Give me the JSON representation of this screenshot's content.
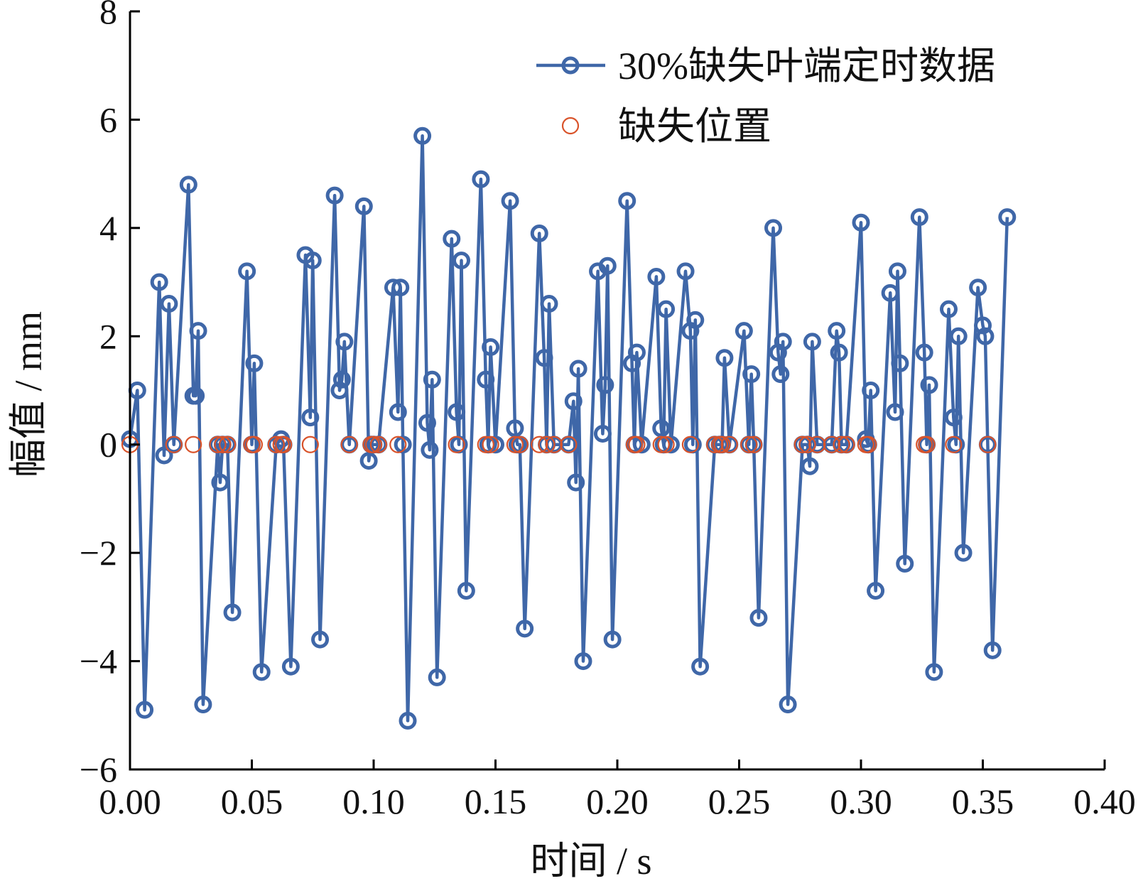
{
  "chart_data": {
    "type": "line",
    "xlabel": "时间 / s",
    "ylabel": "幅值 / mm",
    "xlim": [
      0.0,
      0.4
    ],
    "ylim": [
      -6,
      8
    ],
    "xticks": [
      "0.00",
      "0.05",
      "0.10",
      "0.15",
      "0.20",
      "0.25",
      "0.30",
      "0.35",
      "0.40"
    ],
    "yticks": [
      "−6",
      "−4",
      "−2",
      "0",
      "2",
      "4",
      "6",
      "8"
    ],
    "legend_position": "top-right",
    "grid": false,
    "colors": {
      "series_line": "#3f67a8",
      "missing_marker": "#d9532a"
    },
    "series": [
      {
        "name": "30%缺失叶端定时数据",
        "marker": "circle",
        "x": [
          0.0,
          0.003,
          0.006,
          0.012,
          0.014,
          0.016,
          0.018,
          0.024,
          0.026,
          0.027,
          0.028,
          0.03,
          0.036,
          0.037,
          0.038,
          0.04,
          0.042,
          0.048,
          0.05,
          0.051,
          0.054,
          0.06,
          0.062,
          0.063,
          0.066,
          0.072,
          0.074,
          0.075,
          0.078,
          0.084,
          0.086,
          0.087,
          0.088,
          0.09,
          0.096,
          0.098,
          0.099,
          0.1,
          0.102,
          0.108,
          0.11,
          0.111,
          0.112,
          0.114,
          0.12,
          0.122,
          0.123,
          0.124,
          0.126,
          0.132,
          0.134,
          0.135,
          0.136,
          0.138,
          0.144,
          0.146,
          0.147,
          0.148,
          0.15,
          0.156,
          0.158,
          0.159,
          0.16,
          0.162,
          0.168,
          0.17,
          0.171,
          0.172,
          0.174,
          0.18,
          0.182,
          0.183,
          0.184,
          0.186,
          0.192,
          0.194,
          0.195,
          0.196,
          0.198,
          0.204,
          0.206,
          0.207,
          0.208,
          0.21,
          0.216,
          0.218,
          0.219,
          0.22,
          0.222,
          0.228,
          0.23,
          0.231,
          0.232,
          0.234,
          0.24,
          0.242,
          0.243,
          0.244,
          0.246,
          0.252,
          0.254,
          0.255,
          0.256,
          0.258,
          0.264,
          0.266,
          0.267,
          0.268,
          0.27,
          0.276,
          0.278,
          0.279,
          0.28,
          0.282,
          0.288,
          0.29,
          0.291,
          0.292,
          0.294,
          0.3,
          0.302,
          0.303,
          0.304,
          0.306,
          0.312,
          0.314,
          0.315,
          0.316,
          0.318,
          0.324,
          0.326,
          0.327,
          0.328,
          0.33,
          0.336,
          0.338,
          0.339,
          0.34,
          0.342,
          0.348,
          0.35,
          0.351,
          0.352,
          0.354,
          0.36
        ],
        "y": [
          0.1,
          1.0,
          -4.9,
          3.0,
          -0.2,
          2.6,
          0.0,
          4.8,
          0.9,
          0.9,
          2.1,
          -4.8,
          0.0,
          -0.7,
          0.0,
          0.0,
          -3.1,
          3.2,
          0.0,
          1.5,
          -4.2,
          0.0,
          0.1,
          0.0,
          -4.1,
          3.5,
          0.5,
          3.4,
          -3.6,
          4.6,
          1.0,
          1.2,
          1.9,
          0.0,
          4.4,
          -0.3,
          0.0,
          0.0,
          0.0,
          2.9,
          0.6,
          2.9,
          0.0,
          -5.1,
          5.7,
          0.4,
          -0.1,
          1.2,
          -4.3,
          3.8,
          0.6,
          0.0,
          3.4,
          -2.7,
          4.9,
          1.2,
          0.0,
          1.8,
          0.0,
          4.5,
          0.3,
          0.0,
          0.0,
          -3.4,
          3.9,
          1.6,
          0.0,
          2.6,
          0.0,
          0.0,
          0.8,
          -0.7,
          1.4,
          -4.0,
          3.2,
          0.2,
          1.1,
          3.3,
          -3.6,
          4.5,
          1.5,
          0.0,
          1.7,
          0.0,
          3.1,
          0.3,
          0.0,
          2.5,
          0.0,
          3.2,
          2.1,
          0.0,
          2.3,
          -4.1,
          0.0,
          0.0,
          0.0,
          1.6,
          0.0,
          2.1,
          0.0,
          1.3,
          0.0,
          -3.2,
          4.0,
          1.7,
          1.3,
          1.9,
          -4.8,
          0.0,
          0.0,
          -0.4,
          1.9,
          0.0,
          0.0,
          2.1,
          1.7,
          0.0,
          0.0,
          4.1,
          0.1,
          0.0,
          1.0,
          -2.7,
          2.8,
          0.6,
          3.2,
          1.5,
          -2.2,
          4.2,
          1.7,
          0.0,
          1.1,
          -4.2,
          2.5,
          0.5,
          0.0,
          2.0,
          -2.0,
          2.9,
          2.2,
          2.0,
          0.0,
          -3.8,
          4.2
        ]
      },
      {
        "name": "缺失位置",
        "marker": "circle-open",
        "x": [
          0.0,
          0.018,
          0.026,
          0.036,
          0.038,
          0.04,
          0.05,
          0.051,
          0.06,
          0.063,
          0.062,
          0.074,
          0.09,
          0.099,
          0.1,
          0.102,
          0.11,
          0.134,
          0.146,
          0.148,
          0.158,
          0.16,
          0.168,
          0.171,
          0.174,
          0.18,
          0.207,
          0.208,
          0.218,
          0.22,
          0.23,
          0.24,
          0.242,
          0.243,
          0.246,
          0.254,
          0.256,
          0.276,
          0.278,
          0.282,
          0.288,
          0.292,
          0.294,
          0.302,
          0.303,
          0.326,
          0.327,
          0.338,
          0.352
        ],
        "y": [
          0,
          0,
          0,
          0,
          0,
          0,
          0,
          0,
          0,
          0,
          0,
          0,
          0,
          0,
          0,
          0,
          0,
          0,
          0,
          0,
          0,
          0,
          0,
          0,
          0,
          0,
          0,
          0,
          0,
          0,
          0,
          0,
          0,
          0,
          0,
          0,
          0,
          0,
          0,
          0,
          0,
          0,
          0,
          0,
          0,
          0,
          0,
          0,
          0
        ]
      }
    ]
  }
}
